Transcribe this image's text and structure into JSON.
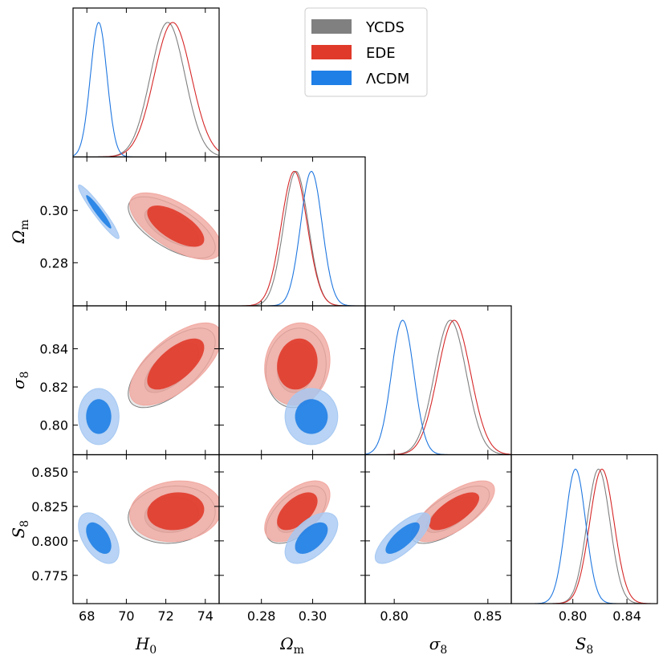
{
  "chart_data": {
    "type": "triangle-corner",
    "parameters": [
      {
        "key": "H0",
        "label_main": "H",
        "label_sub": "0",
        "range": [
          67.3,
          74.7
        ],
        "ticks": [
          68,
          70,
          72,
          74
        ],
        "tick_labels": [
          "68",
          "70",
          "72",
          "74"
        ]
      },
      {
        "key": "Om",
        "label_main": "Ω",
        "label_sub": "m",
        "range": [
          0.2635,
          0.3205
        ],
        "ticks": [
          0.28,
          0.3
        ],
        "tick_labels": [
          "0.28",
          "0.30"
        ]
      },
      {
        "key": "s8",
        "label_main": "σ",
        "label_sub": "8",
        "range": [
          0.7845,
          0.8625
        ],
        "ticks": [
          0.8,
          0.82,
          0.84
        ],
        "tick_labels": [
          "0.80",
          "0.82",
          "0.84"
        ],
        "xticks": [
          0.8,
          0.85
        ],
        "xtick_labels": [
          "0.80",
          "0.85"
        ]
      },
      {
        "key": "S8",
        "label_main": "S",
        "label_sub": "8",
        "range": [
          0.7545,
          0.8625
        ],
        "ticks": [
          0.775,
          0.8,
          0.825,
          0.85
        ],
        "tick_labels": [
          "0.775",
          "0.800",
          "0.825",
          "0.850"
        ],
        "xticks": [
          0.8,
          0.84
        ],
        "xtick_labels": [
          "0.80",
          "0.84"
        ]
      }
    ],
    "series": [
      {
        "name": "YCDS",
        "color": "#7f7f7f",
        "fill68": "#7f7f7f",
        "fill95": "#bdbdbd",
        "filled": false,
        "mean": [
          72.3,
          0.2935,
          0.83,
          0.819
        ],
        "sigma": [
          0.9,
          0.0048,
          0.0085,
          0.0085
        ],
        "skew": [
          -0.3,
          0.0,
          0.0,
          0.0
        ],
        "corr": {
          "1-0": -0.65,
          "2-0": 0.65,
          "2-1": 0.1,
          "3-0": 0.1,
          "3-1": 0.55,
          "3-2": 0.7
        }
      },
      {
        "name": "EDE",
        "color": "#d62728",
        "fill68": "#e03a2a",
        "fill95": "#f0a8a0",
        "filled": true,
        "mean": [
          72.5,
          0.294,
          0.832,
          0.8215
        ],
        "sigma": [
          0.95,
          0.0052,
          0.0088,
          0.009
        ],
        "skew": [
          -0.2,
          -0.3,
          0.0,
          0.0
        ],
        "corr": {
          "1-0": -0.65,
          "2-0": 0.65,
          "2-1": 0.1,
          "3-0": 0.1,
          "3-1": 0.55,
          "3-2": 0.7
        }
      },
      {
        "name": "ΛCDM",
        "color": "#1f77e0",
        "fill68": "#1f7fe6",
        "fill95": "#a6c8f2",
        "filled": true,
        "mean": [
          68.6,
          0.2995,
          0.8045,
          0.802
        ],
        "sigma": [
          0.42,
          0.0042,
          0.006,
          0.0075
        ],
        "skew": [
          0,
          0,
          0,
          0
        ],
        "corr": {
          "1-0": -0.95,
          "2-0": 0.0,
          "2-1": 0.0,
          "3-0": -0.5,
          "3-1": 0.55,
          "3-2": 0.75
        }
      }
    ],
    "legend": {
      "position": "top-right",
      "entries": [
        "YCDS",
        "EDE",
        "ΛCDM"
      ]
    },
    "contour_levels": [
      "68%",
      "95%"
    ],
    "grid": false
  }
}
